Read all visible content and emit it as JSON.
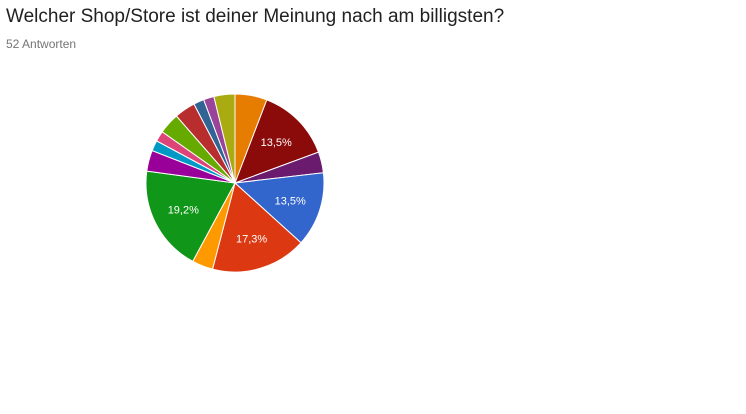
{
  "header": {
    "question": "Welcher Shop/Store ist deiner Meinung nach am billigsten?",
    "responses": "52 Antworten"
  },
  "chart_data": {
    "type": "pie",
    "total": 52,
    "start": "12 o'clock, clockwise",
    "slices": [
      {
        "percent": 5.8,
        "color": "#e67c00",
        "label": ""
      },
      {
        "percent": 13.5,
        "color": "#8b0a0a",
        "label": "13,5%"
      },
      {
        "percent": 3.8,
        "color": "#6a1b6e",
        "label": ""
      },
      {
        "percent": 13.5,
        "color": "#3366cc",
        "label": "13,5%"
      },
      {
        "percent": 17.3,
        "color": "#dc3912",
        "label": "17,3%"
      },
      {
        "percent": 3.8,
        "color": "#ff9900",
        "label": ""
      },
      {
        "percent": 19.2,
        "color": "#109618",
        "label": "19,2%"
      },
      {
        "percent": 3.8,
        "color": "#990099",
        "label": ""
      },
      {
        "percent": 1.9,
        "color": "#0099c6",
        "label": ""
      },
      {
        "percent": 1.9,
        "color": "#dd4477",
        "label": ""
      },
      {
        "percent": 3.8,
        "color": "#66aa00",
        "label": ""
      },
      {
        "percent": 3.8,
        "color": "#b82e2e",
        "label": ""
      },
      {
        "percent": 1.9,
        "color": "#316395",
        "label": ""
      },
      {
        "percent": 1.9,
        "color": "#994499",
        "label": ""
      },
      {
        "percent": 3.8,
        "color": "#aaaa11",
        "label": ""
      }
    ]
  }
}
